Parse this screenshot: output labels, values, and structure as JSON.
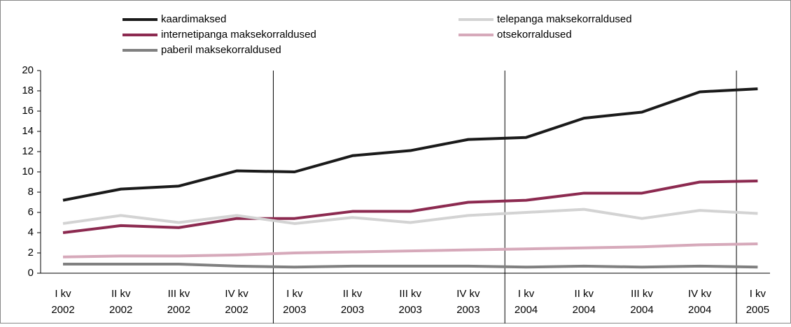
{
  "chart_data": {
    "type": "line",
    "categories": [
      [
        "I kv",
        "2002"
      ],
      [
        "II kv",
        "2002"
      ],
      [
        "III kv",
        "2002"
      ],
      [
        "IV kv",
        "2002"
      ],
      [
        "I kv",
        "2003"
      ],
      [
        "II kv",
        "2003"
      ],
      [
        "III kv",
        "2003"
      ],
      [
        "IV kv",
        "2003"
      ],
      [
        "I kv",
        "2004"
      ],
      [
        "II kv",
        "2004"
      ],
      [
        "III kv",
        "2004"
      ],
      [
        "IV kv",
        "2004"
      ],
      [
        "I kv",
        "2005"
      ]
    ],
    "series": [
      {
        "name": "kaardimaksed",
        "color": "#1a1a1a",
        "values": [
          7.2,
          8.3,
          8.6,
          10.1,
          10.0,
          11.6,
          12.1,
          13.2,
          13.4,
          15.3,
          15.9,
          17.9,
          18.2
        ]
      },
      {
        "name": "telepanga maksekorraldused",
        "color": "#d3d3d3",
        "values": [
          4.9,
          5.7,
          5.0,
          5.7,
          4.9,
          5.5,
          5.0,
          5.7,
          6.0,
          6.3,
          5.4,
          6.2,
          5.9
        ]
      },
      {
        "name": "internetipanga maksekorraldused",
        "color": "#8c2a50",
        "values": [
          4.0,
          4.7,
          4.5,
          5.4,
          5.4,
          6.1,
          6.1,
          7.0,
          7.2,
          7.9,
          7.9,
          9.0,
          9.1
        ]
      },
      {
        "name": "otsekorraldused",
        "color": "#d6a9ba",
        "values": [
          1.6,
          1.7,
          1.7,
          1.8,
          2.0,
          2.1,
          2.2,
          2.3,
          2.4,
          2.5,
          2.6,
          2.8,
          2.9
        ]
      },
      {
        "name": "paberil maksekorraldused",
        "color": "#808080",
        "values": [
          0.9,
          0.9,
          0.9,
          0.7,
          0.6,
          0.7,
          0.7,
          0.7,
          0.6,
          0.7,
          0.6,
          0.7,
          0.6
        ]
      }
    ],
    "ylim": [
      0,
      20
    ],
    "yticks": [
      0,
      2,
      4,
      6,
      8,
      10,
      12,
      14,
      16,
      18,
      20
    ],
    "legend": "top"
  }
}
